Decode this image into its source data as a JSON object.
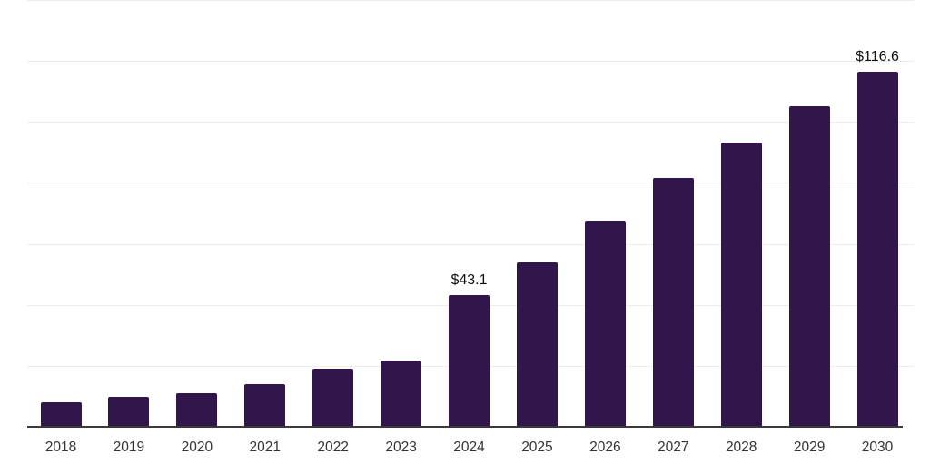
{
  "chart_data": {
    "type": "bar",
    "title": "",
    "xlabel": "",
    "ylabel": "",
    "categories": [
      "2018",
      "2019",
      "2020",
      "2021",
      "2022",
      "2023",
      "2024",
      "2025",
      "2026",
      "2027",
      "2028",
      "2029",
      "2030"
    ],
    "values": [
      8.1,
      9.8,
      10.9,
      13.9,
      19.2,
      21.8,
      43.1,
      53.8,
      67.5,
      81.7,
      93.2,
      105.2,
      116.6
    ],
    "value_labels": [
      "",
      "",
      "",
      "",
      "",
      "",
      "$43.1",
      "",
      "",
      "",
      "",
      "",
      "$116.6"
    ],
    "ylim": [
      0,
      140
    ],
    "gridline_step": 20,
    "grid": true,
    "legend": false,
    "colors": {
      "bar": "#30164a",
      "gridline": "#ececf1",
      "axis_line": "#3a3a3a",
      "tick_label": "#333333",
      "value_label": "#111111",
      "background": "#ffffff"
    }
  }
}
